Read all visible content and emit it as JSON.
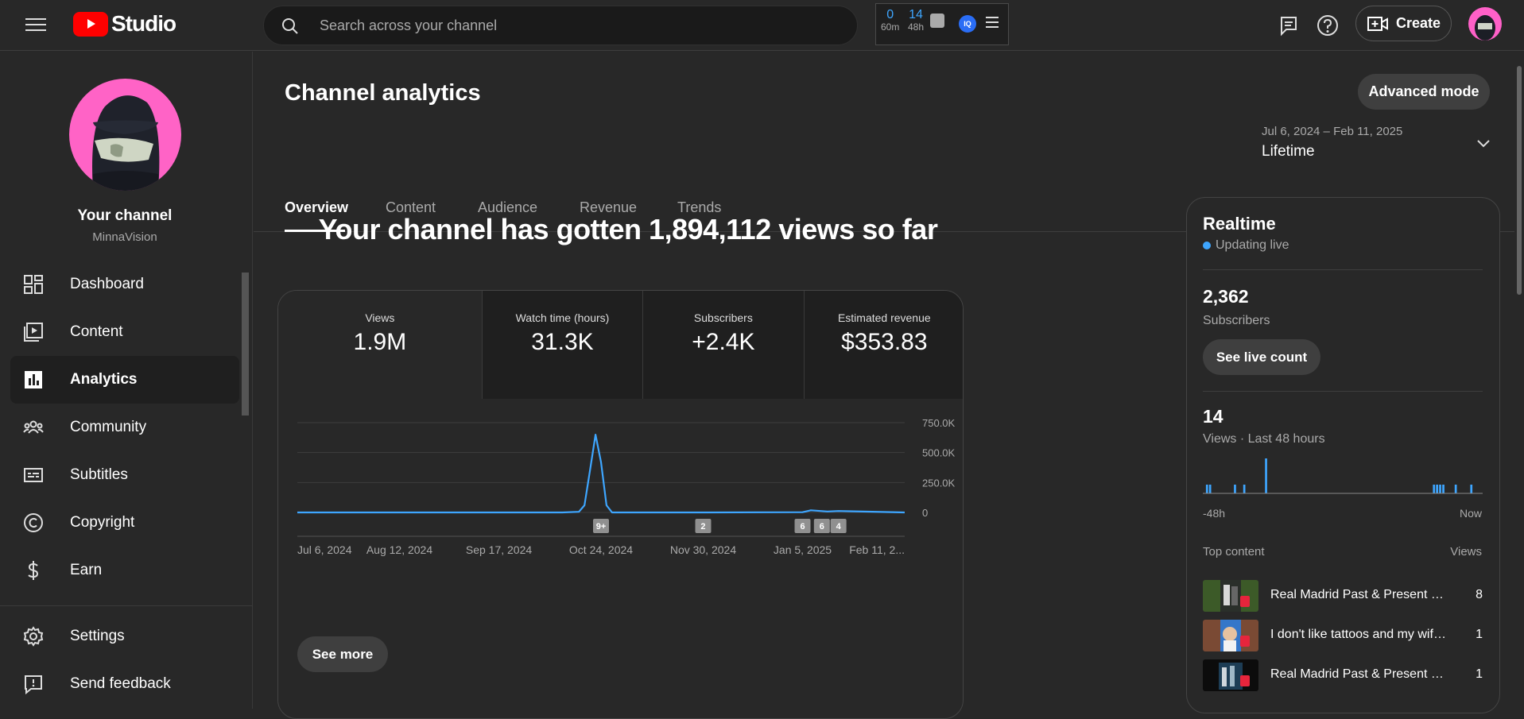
{
  "app": {
    "logo_text": "Studio"
  },
  "search": {
    "placeholder": "Search across your channel"
  },
  "extension": {
    "stat1_value": "0",
    "stat1_label": "60m",
    "stat2_value": "14",
    "stat2_label": "48h",
    "vidiq_label": "IQ"
  },
  "header": {
    "create_label": "Create"
  },
  "sidebar": {
    "channel_title": "Your channel",
    "channel_handle": "MinnaVision",
    "items": [
      {
        "label": "Dashboard",
        "icon": "dashboard-icon"
      },
      {
        "label": "Content",
        "icon": "content-icon"
      },
      {
        "label": "Analytics",
        "icon": "analytics-icon",
        "active": true
      },
      {
        "label": "Community",
        "icon": "community-icon"
      },
      {
        "label": "Subtitles",
        "icon": "subtitles-icon"
      },
      {
        "label": "Copyright",
        "icon": "copyright-icon"
      },
      {
        "label": "Earn",
        "icon": "earn-icon"
      }
    ],
    "bottom_items": [
      {
        "label": "Settings",
        "icon": "gear-icon"
      },
      {
        "label": "Send feedback",
        "icon": "feedback-icon"
      }
    ]
  },
  "main": {
    "title": "Channel analytics",
    "advanced_mode_label": "Advanced mode",
    "tabs": [
      "Overview",
      "Content",
      "Audience",
      "Revenue",
      "Trends"
    ],
    "date_range": "Jul 6, 2024 – Feb 11, 2025",
    "date_label": "Lifetime",
    "headline": "Your channel has gotten 1,894,112 views so far",
    "metrics": [
      {
        "label": "Views",
        "value": "1.9M"
      },
      {
        "label": "Watch time (hours)",
        "value": "31.3K"
      },
      {
        "label": "Subscribers",
        "value": "+2.4K"
      },
      {
        "label": "Estimated revenue",
        "value": "$353.83"
      }
    ],
    "see_more_label": "See more"
  },
  "chart_data": {
    "type": "line",
    "series": [
      {
        "x": [
          "Jul 6, 2024",
          "Aug 12, 2024",
          "Sep 17, 2024",
          "Oct 10, 2024",
          "Oct 16, 2024",
          "Oct 18, 2024",
          "Oct 20, 2024",
          "Oct 22, 2024",
          "Oct 24, 2024",
          "Oct 26, 2024",
          "Oct 28, 2024",
          "Nov 30, 2024",
          "Jan 5, 2025",
          "Jan 8, 2025",
          "Jan 14, 2025",
          "Jan 18, 2025",
          "Jan 22, 2025",
          "Feb 11, 2025"
        ],
        "values": [
          0,
          0,
          0,
          0,
          5000,
          60000,
          350000,
          650000,
          420000,
          60000,
          0,
          0,
          2000,
          18000,
          8000,
          12000,
          10000,
          0
        ]
      }
    ],
    "x_ticks": [
      "Jul 6, 2024",
      "Aug 12, 2024",
      "Sep 17, 2024",
      "Oct 24, 2024",
      "Nov 30, 2024",
      "Jan 5, 2025",
      "Feb 11, 2..."
    ],
    "y_ticks": [
      "0",
      "250.0K",
      "500.0K",
      "750.0K"
    ],
    "ylim": [
      0,
      750000
    ],
    "markers": [
      {
        "date": "Oct 24, 2024",
        "label": "9+"
      },
      {
        "date": "Nov 30, 2024",
        "label": "2"
      },
      {
        "date": "Jan 5, 2025",
        "label": "6"
      },
      {
        "date": "Jan 12, 2025",
        "label": "6"
      },
      {
        "date": "Jan 18, 2025",
        "label": "4"
      }
    ],
    "color": "#3ea6ff",
    "grid": true
  },
  "realtime": {
    "title": "Realtime",
    "live_label": "Updating live",
    "subscribers_value": "2,362",
    "subscribers_label": "Subscribers",
    "live_count_label": "See live count",
    "views_value": "14",
    "views_label": "Views · Last 48 hours",
    "axis_start": "-48h",
    "axis_end": "Now",
    "bars_48h": [
      0,
      1,
      1,
      0,
      0,
      0,
      0,
      0,
      0,
      0,
      1,
      0,
      0,
      1,
      0,
      0,
      0,
      0,
      0,
      0,
      4,
      0,
      0,
      0,
      0,
      0,
      0,
      0,
      0,
      0,
      0,
      0,
      0,
      0,
      0,
      0,
      0,
      0,
      0,
      0,
      0,
      0,
      0,
      0,
      0,
      0,
      0,
      0,
      0,
      0,
      0,
      0,
      0,
      0,
      0,
      0,
      0,
      0,
      0,
      0,
      0,
      0,
      0,
      0,
      0,
      0,
      0,
      0,
      0,
      0,
      0,
      0,
      0,
      0,
      1,
      1,
      1,
      1,
      0,
      0,
      0,
      1,
      0,
      0,
      0,
      0,
      1,
      0,
      0,
      0
    ],
    "top_content_header": "Top content",
    "views_header": "Views",
    "top_content": [
      {
        "title": "Real Madrid Past & Present Footballers...",
        "views": "8"
      },
      {
        "title": "I don't like tattoos and my wife...",
        "views": "1"
      },
      {
        "title": "Real Madrid Past & Present Footballers...",
        "views": "1"
      }
    ]
  }
}
